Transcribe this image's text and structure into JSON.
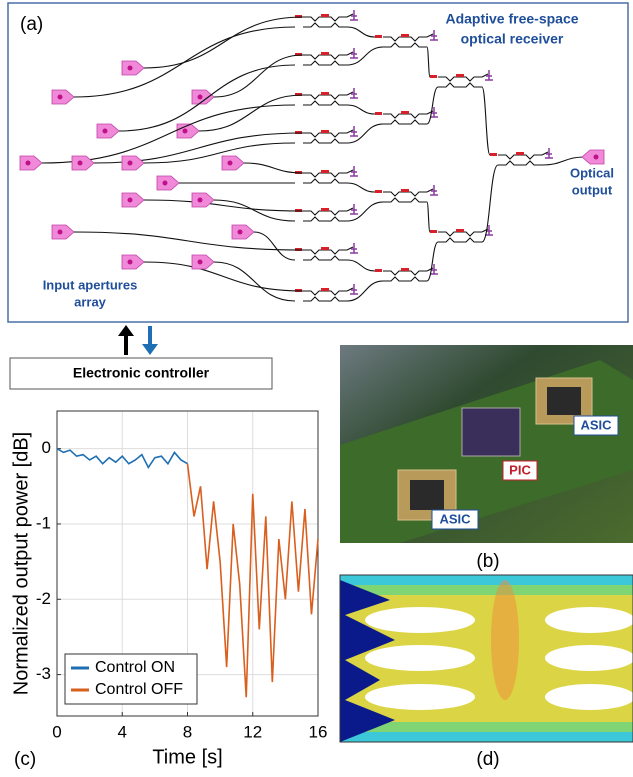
{
  "panel_labels": [
    "(a)",
    "(b)",
    "(c)",
    "(d)"
  ],
  "diagram": {
    "title": [
      "Adaptive free-space",
      "optical receiver"
    ],
    "input_label": [
      "Input apertures",
      "array"
    ],
    "output_label": [
      "Optical",
      "output"
    ],
    "controller": "Electronic controller"
  },
  "photo": {
    "labels": [
      "ASIC",
      "PIC",
      "ASIC"
    ]
  },
  "chart_data": {
    "type": "line",
    "xlabel": "Time [s]",
    "ylabel": "Normalized output power [dB]",
    "x": [
      0,
      0.4,
      0.8,
      1.2,
      1.6,
      2,
      2.4,
      2.8,
      3.2,
      3.6,
      4,
      4.4,
      4.8,
      5.2,
      5.6,
      6,
      6.4,
      6.8,
      7.2,
      7.6,
      8,
      8.4,
      8.8,
      9.2,
      9.6,
      10,
      10.4,
      10.8,
      11.2,
      11.6,
      12,
      12.4,
      12.8,
      13.2,
      13.6,
      14,
      14.4,
      14.8,
      15.2,
      15.6,
      16
    ],
    "series": [
      {
        "name": "Control ON",
        "color": "#1f6fb4",
        "values": [
          0,
          -0.05,
          -0.02,
          -0.1,
          -0.08,
          -0.15,
          -0.1,
          -0.2,
          -0.12,
          -0.18,
          -0.1,
          -0.2,
          -0.15,
          -0.08,
          -0.25,
          -0.12,
          -0.1,
          -0.2,
          -0.05,
          -0.15,
          -0.2,
          null,
          null,
          null,
          null,
          null,
          null,
          null,
          null,
          null,
          null,
          null,
          null,
          null,
          null,
          null,
          null,
          null,
          null,
          null,
          null
        ]
      },
      {
        "name": "Control OFF",
        "color": "#d95f1e",
        "values": [
          null,
          null,
          null,
          null,
          null,
          null,
          null,
          null,
          null,
          null,
          null,
          null,
          null,
          null,
          null,
          null,
          null,
          null,
          null,
          null,
          -0.2,
          -0.9,
          -0.5,
          -1.6,
          -0.7,
          -1.5,
          -2.9,
          -1.0,
          -1.8,
          -3.3,
          -0.6,
          -2.4,
          -0.9,
          -3.1,
          -1.2,
          -2.0,
          -0.7,
          -1.9,
          -0.8,
          -2.2,
          -1.2
        ]
      }
    ],
    "xlim": [
      0,
      16
    ],
    "ylim": [
      -3.55,
      0.5
    ],
    "xticks": [
      0,
      4,
      8,
      12,
      16
    ],
    "yticks": [
      0,
      -1,
      -2,
      -3
    ],
    "grid": true,
    "legend": "lower-left"
  }
}
